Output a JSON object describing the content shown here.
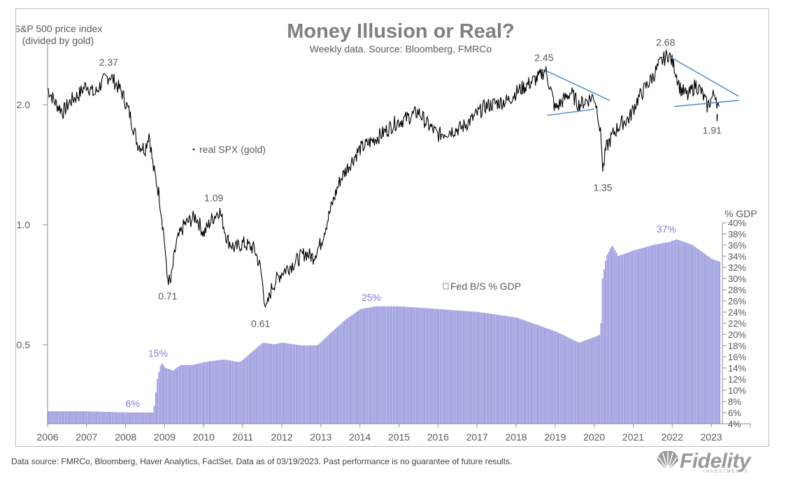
{
  "chart_data": {
    "type": "line+bar",
    "title": "Money Illusion or Real?",
    "subtitle": "Weekly data.  Source: Bloomberg, FMRCo",
    "left_axis_label": [
      "S&P 500 price index",
      "(divided by gold)"
    ],
    "left_axis_scale": "log",
    "left_ticks": [
      "0.5",
      "1.0",
      "2.0"
    ],
    "left_tick_values": [
      0.5,
      1.0,
      2.0
    ],
    "right_axis_label": "% GDP",
    "right_ticks": [
      "4%",
      "6%",
      "8%",
      "10%",
      "12%",
      "14%",
      "16%",
      "18%",
      "20%",
      "22%",
      "24%",
      "26%",
      "28%",
      "30%",
      "32%",
      "34%",
      "36%",
      "38%",
      "40%"
    ],
    "right_range": [
      4,
      40
    ],
    "x_ticks": [
      "2006",
      "2007",
      "2008",
      "2009",
      "2010",
      "2011",
      "2012",
      "2013",
      "2014",
      "2015",
      "2016",
      "2017",
      "2018",
      "2019",
      "2020",
      "2021",
      "2022",
      "2023"
    ],
    "x_range": [
      2006,
      2024
    ],
    "series": [
      {
        "name": "real SPX (gold)",
        "axis": "left",
        "style": "line",
        "color": "#000000",
        "points": [
          [
            2006.0,
            2.2
          ],
          [
            2006.2,
            2.02
          ],
          [
            2006.4,
            1.92
          ],
          [
            2006.6,
            2.05
          ],
          [
            2006.8,
            2.12
          ],
          [
            2007.0,
            2.25
          ],
          [
            2007.2,
            2.12
          ],
          [
            2007.4,
            2.28
          ],
          [
            2007.6,
            2.37
          ],
          [
            2007.9,
            2.15
          ],
          [
            2008.1,
            1.9
          ],
          [
            2008.3,
            1.6
          ],
          [
            2008.5,
            1.55
          ],
          [
            2008.6,
            1.7
          ],
          [
            2008.7,
            1.4
          ],
          [
            2008.85,
            1.2
          ],
          [
            2009.0,
            0.9
          ],
          [
            2009.05,
            0.75
          ],
          [
            2009.15,
            0.71
          ],
          [
            2009.3,
            0.9
          ],
          [
            2009.5,
            1.0
          ],
          [
            2009.8,
            1.05
          ],
          [
            2010.0,
            0.95
          ],
          [
            2010.2,
            1.03
          ],
          [
            2010.4,
            1.09
          ],
          [
            2010.6,
            0.92
          ],
          [
            2010.8,
            0.87
          ],
          [
            2011.0,
            0.9
          ],
          [
            2011.3,
            0.87
          ],
          [
            2011.45,
            0.78
          ],
          [
            2011.55,
            0.66
          ],
          [
            2011.6,
            0.61
          ],
          [
            2011.75,
            0.7
          ],
          [
            2012.0,
            0.76
          ],
          [
            2012.3,
            0.8
          ],
          [
            2012.6,
            0.85
          ],
          [
            2012.8,
            0.83
          ],
          [
            2013.0,
            0.9
          ],
          [
            2013.2,
            1.05
          ],
          [
            2013.5,
            1.3
          ],
          [
            2013.8,
            1.45
          ],
          [
            2014.0,
            1.55
          ],
          [
            2014.3,
            1.62
          ],
          [
            2014.6,
            1.7
          ],
          [
            2014.9,
            1.8
          ],
          [
            2015.2,
            1.85
          ],
          [
            2015.5,
            1.92
          ],
          [
            2015.7,
            1.8
          ],
          [
            2016.0,
            1.68
          ],
          [
            2016.3,
            1.72
          ],
          [
            2016.6,
            1.75
          ],
          [
            2016.9,
            1.85
          ],
          [
            2017.2,
            1.98
          ],
          [
            2017.5,
            2.02
          ],
          [
            2017.8,
            2.05
          ],
          [
            2018.0,
            2.15
          ],
          [
            2018.3,
            2.25
          ],
          [
            2018.6,
            2.35
          ],
          [
            2018.75,
            2.45
          ],
          [
            2018.9,
            2.15
          ],
          [
            2019.0,
            1.95
          ],
          [
            2019.2,
            2.05
          ],
          [
            2019.4,
            2.15
          ],
          [
            2019.6,
            2.0
          ],
          [
            2019.8,
            2.05
          ],
          [
            2020.0,
            2.1
          ],
          [
            2020.1,
            1.9
          ],
          [
            2020.2,
            1.55
          ],
          [
            2020.22,
            1.35
          ],
          [
            2020.3,
            1.55
          ],
          [
            2020.5,
            1.7
          ],
          [
            2020.7,
            1.8
          ],
          [
            2020.9,
            1.85
          ],
          [
            2021.1,
            2.05
          ],
          [
            2021.3,
            2.2
          ],
          [
            2021.5,
            2.35
          ],
          [
            2021.7,
            2.55
          ],
          [
            2021.9,
            2.68
          ],
          [
            2022.05,
            2.5
          ],
          [
            2022.2,
            2.2
          ],
          [
            2022.4,
            2.1
          ],
          [
            2022.6,
            2.25
          ],
          [
            2022.75,
            2.15
          ],
          [
            2022.9,
            1.98
          ],
          [
            2023.1,
            2.15
          ],
          [
            2023.2,
            1.91
          ]
        ]
      },
      {
        "name": "Fed B/S % GDP",
        "axis": "right",
        "style": "bar",
        "color": "#a5a5e6",
        "points": [
          [
            2006.0,
            6.2
          ],
          [
            2007.0,
            6.2
          ],
          [
            2008.0,
            6.0
          ],
          [
            2008.7,
            6.0
          ],
          [
            2008.8,
            12.0
          ],
          [
            2008.9,
            15.0
          ],
          [
            2009.0,
            14.0
          ],
          [
            2009.2,
            13.5
          ],
          [
            2009.4,
            14.5
          ],
          [
            2009.7,
            14.5
          ],
          [
            2010.0,
            15.0
          ],
          [
            2010.5,
            15.5
          ],
          [
            2010.9,
            15.0
          ],
          [
            2011.0,
            15.5
          ],
          [
            2011.5,
            18.5
          ],
          [
            2011.8,
            18.2
          ],
          [
            2012.0,
            18.5
          ],
          [
            2012.5,
            18.0
          ],
          [
            2012.9,
            18.0
          ],
          [
            2013.2,
            20.0
          ],
          [
            2013.6,
            22.5
          ],
          [
            2014.0,
            24.5
          ],
          [
            2014.4,
            25.0
          ],
          [
            2015.0,
            25.0
          ],
          [
            2016.0,
            24.5
          ],
          [
            2017.0,
            24.0
          ],
          [
            2018.0,
            23.0
          ],
          [
            2018.6,
            21.5
          ],
          [
            2019.0,
            20.5
          ],
          [
            2019.6,
            18.5
          ],
          [
            2019.8,
            19.0
          ],
          [
            2020.0,
            19.5
          ],
          [
            2020.15,
            20.0
          ],
          [
            2020.2,
            30.0
          ],
          [
            2020.3,
            34.0
          ],
          [
            2020.45,
            36.0
          ],
          [
            2020.6,
            34.0
          ],
          [
            2021.0,
            35.0
          ],
          [
            2021.5,
            36.0
          ],
          [
            2021.9,
            36.5
          ],
          [
            2022.1,
            37.0
          ],
          [
            2022.5,
            36.0
          ],
          [
            2022.8,
            34.5
          ],
          [
            2023.0,
            33.5
          ],
          [
            2023.2,
            33.0
          ]
        ]
      }
    ],
    "annotations": [
      {
        "text": "2.37",
        "series": "real SPX (gold)",
        "x": 2007.6,
        "y": 2.37
      },
      {
        "text": "1.09",
        "series": "real SPX (gold)",
        "x": 2010.4,
        "y": 1.09
      },
      {
        "text": "0.71",
        "series": "real SPX (gold)",
        "x": 2009.15,
        "y": 0.71
      },
      {
        "text": "0.61",
        "series": "real SPX (gold)",
        "x": 2011.6,
        "y": 0.61
      },
      {
        "text": "2.45",
        "series": "real SPX (gold)",
        "x": 2018.75,
        "y": 2.45
      },
      {
        "text": "1.35",
        "series": "real SPX (gold)",
        "x": 2020.22,
        "y": 1.35
      },
      {
        "text": "2.68",
        "series": "real SPX (gold)",
        "x": 2021.9,
        "y": 2.68
      },
      {
        "text": "1.91",
        "series": "real SPX (gold)",
        "x": 2023.2,
        "y": 1.91
      },
      {
        "text": "6%",
        "series": "Fed B/S % GDP",
        "x": 2008.0,
        "y": 6.0
      },
      {
        "text": "15%",
        "series": "Fed B/S % GDP",
        "x": 2008.9,
        "y": 15.0
      },
      {
        "text": "25%",
        "series": "Fed B/S % GDP",
        "x": 2014.4,
        "y": 25.0
      },
      {
        "text": "37%",
        "series": "Fed B/S % GDP",
        "x": 2022.1,
        "y": 37.0
      }
    ],
    "trend_lines": [
      {
        "name": "triangle-2018-upper",
        "from": [
          2018.7,
          2.45
        ],
        "to": [
          2020.4,
          2.05
        ]
      },
      {
        "name": "triangle-2018-lower",
        "from": [
          2018.8,
          1.88
        ],
        "to": [
          2020.0,
          1.95
        ]
      },
      {
        "name": "triangle-2021-upper",
        "from": [
          2021.9,
          2.65
        ],
        "to": [
          2023.7,
          2.1
        ]
      },
      {
        "name": "triangle-2021-lower",
        "from": [
          2022.05,
          1.98
        ],
        "to": [
          2023.7,
          2.05
        ]
      }
    ],
    "legend": [
      {
        "label": "real SPX (gold)",
        "marker": "dot",
        "placement": "center-left"
      },
      {
        "label": "Fed B/S % GDP",
        "marker": "box",
        "placement": "bottom-center"
      }
    ],
    "grid": false,
    "colors": {
      "price": "#000000",
      "fed": "#a5a5e6",
      "fed_label": "#8080d8",
      "trend": "#4a86c5",
      "title": "#7f7f7f",
      "text": "#595959"
    }
  },
  "footer": "Data source: FMRCo, Bloomberg, Haver Analytics, FactSet. Data as of 03/19/2023. Past performance is no guarantee of future results.",
  "logo": {
    "word": "Fidelity",
    "sub": "INVESTMENTS"
  }
}
